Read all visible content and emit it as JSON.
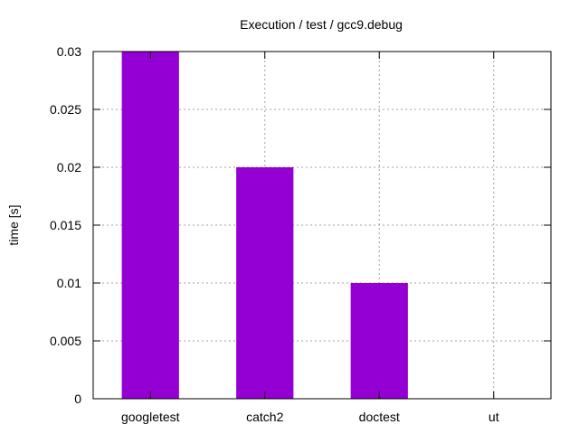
{
  "chart_data": {
    "type": "bar",
    "title": "Execution / test / gcc9.debug",
    "xlabel": "",
    "ylabel": "time [s]",
    "categories": [
      "googletest",
      "catch2",
      "doctest",
      "ut"
    ],
    "values": [
      0.03,
      0.02,
      0.01,
      0
    ],
    "ylim": [
      0,
      0.03
    ],
    "yticks": [
      "0",
      "0.005",
      "0.01",
      "0.015",
      "0.02",
      "0.025",
      "0.03"
    ],
    "grid": true,
    "bar_color": "#9400d3"
  }
}
